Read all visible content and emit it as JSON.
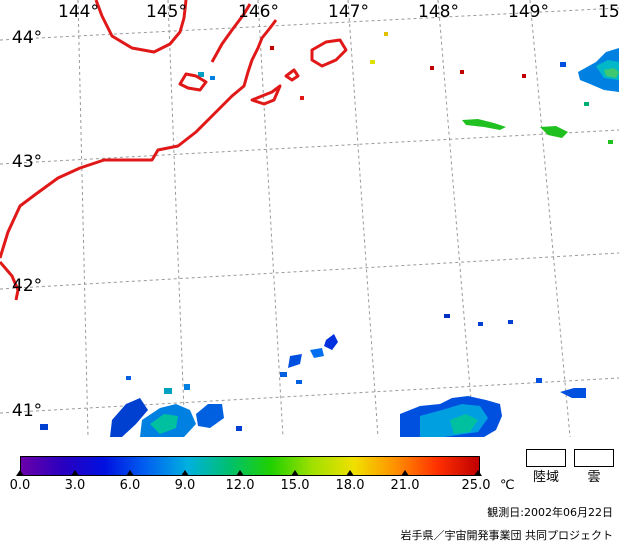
{
  "map": {
    "lon_labels": [
      "144°",
      "145°",
      "146°",
      "147°",
      "148°",
      "149°",
      "15"
    ],
    "lat_labels": [
      "44°",
      "43°",
      "42°",
      "41°"
    ],
    "colors": {
      "coast": "#e01818",
      "grid": "#9a9a9a",
      "background": "#ffffff"
    }
  },
  "legend": {
    "ticks": [
      "0.0",
      "3.0",
      "6.0",
      "9.0",
      "12.0",
      "15.0",
      "18.0",
      "21.0",
      "25.0"
    ],
    "unit": "℃",
    "land_label": "陸域",
    "cloud_label": "雲",
    "colormap": [
      "#6a00a8",
      "#2a00c0",
      "#0010e0",
      "#0060f0",
      "#00b0e0",
      "#00c070",
      "#20d000",
      "#a0e000",
      "#f0e000",
      "#ff9000",
      "#ff3000",
      "#c00000"
    ]
  },
  "footer": {
    "date": "観測日:2002年06月22日",
    "credit": "岩手県／宇宙開発事業団 共同プロジェクト"
  }
}
